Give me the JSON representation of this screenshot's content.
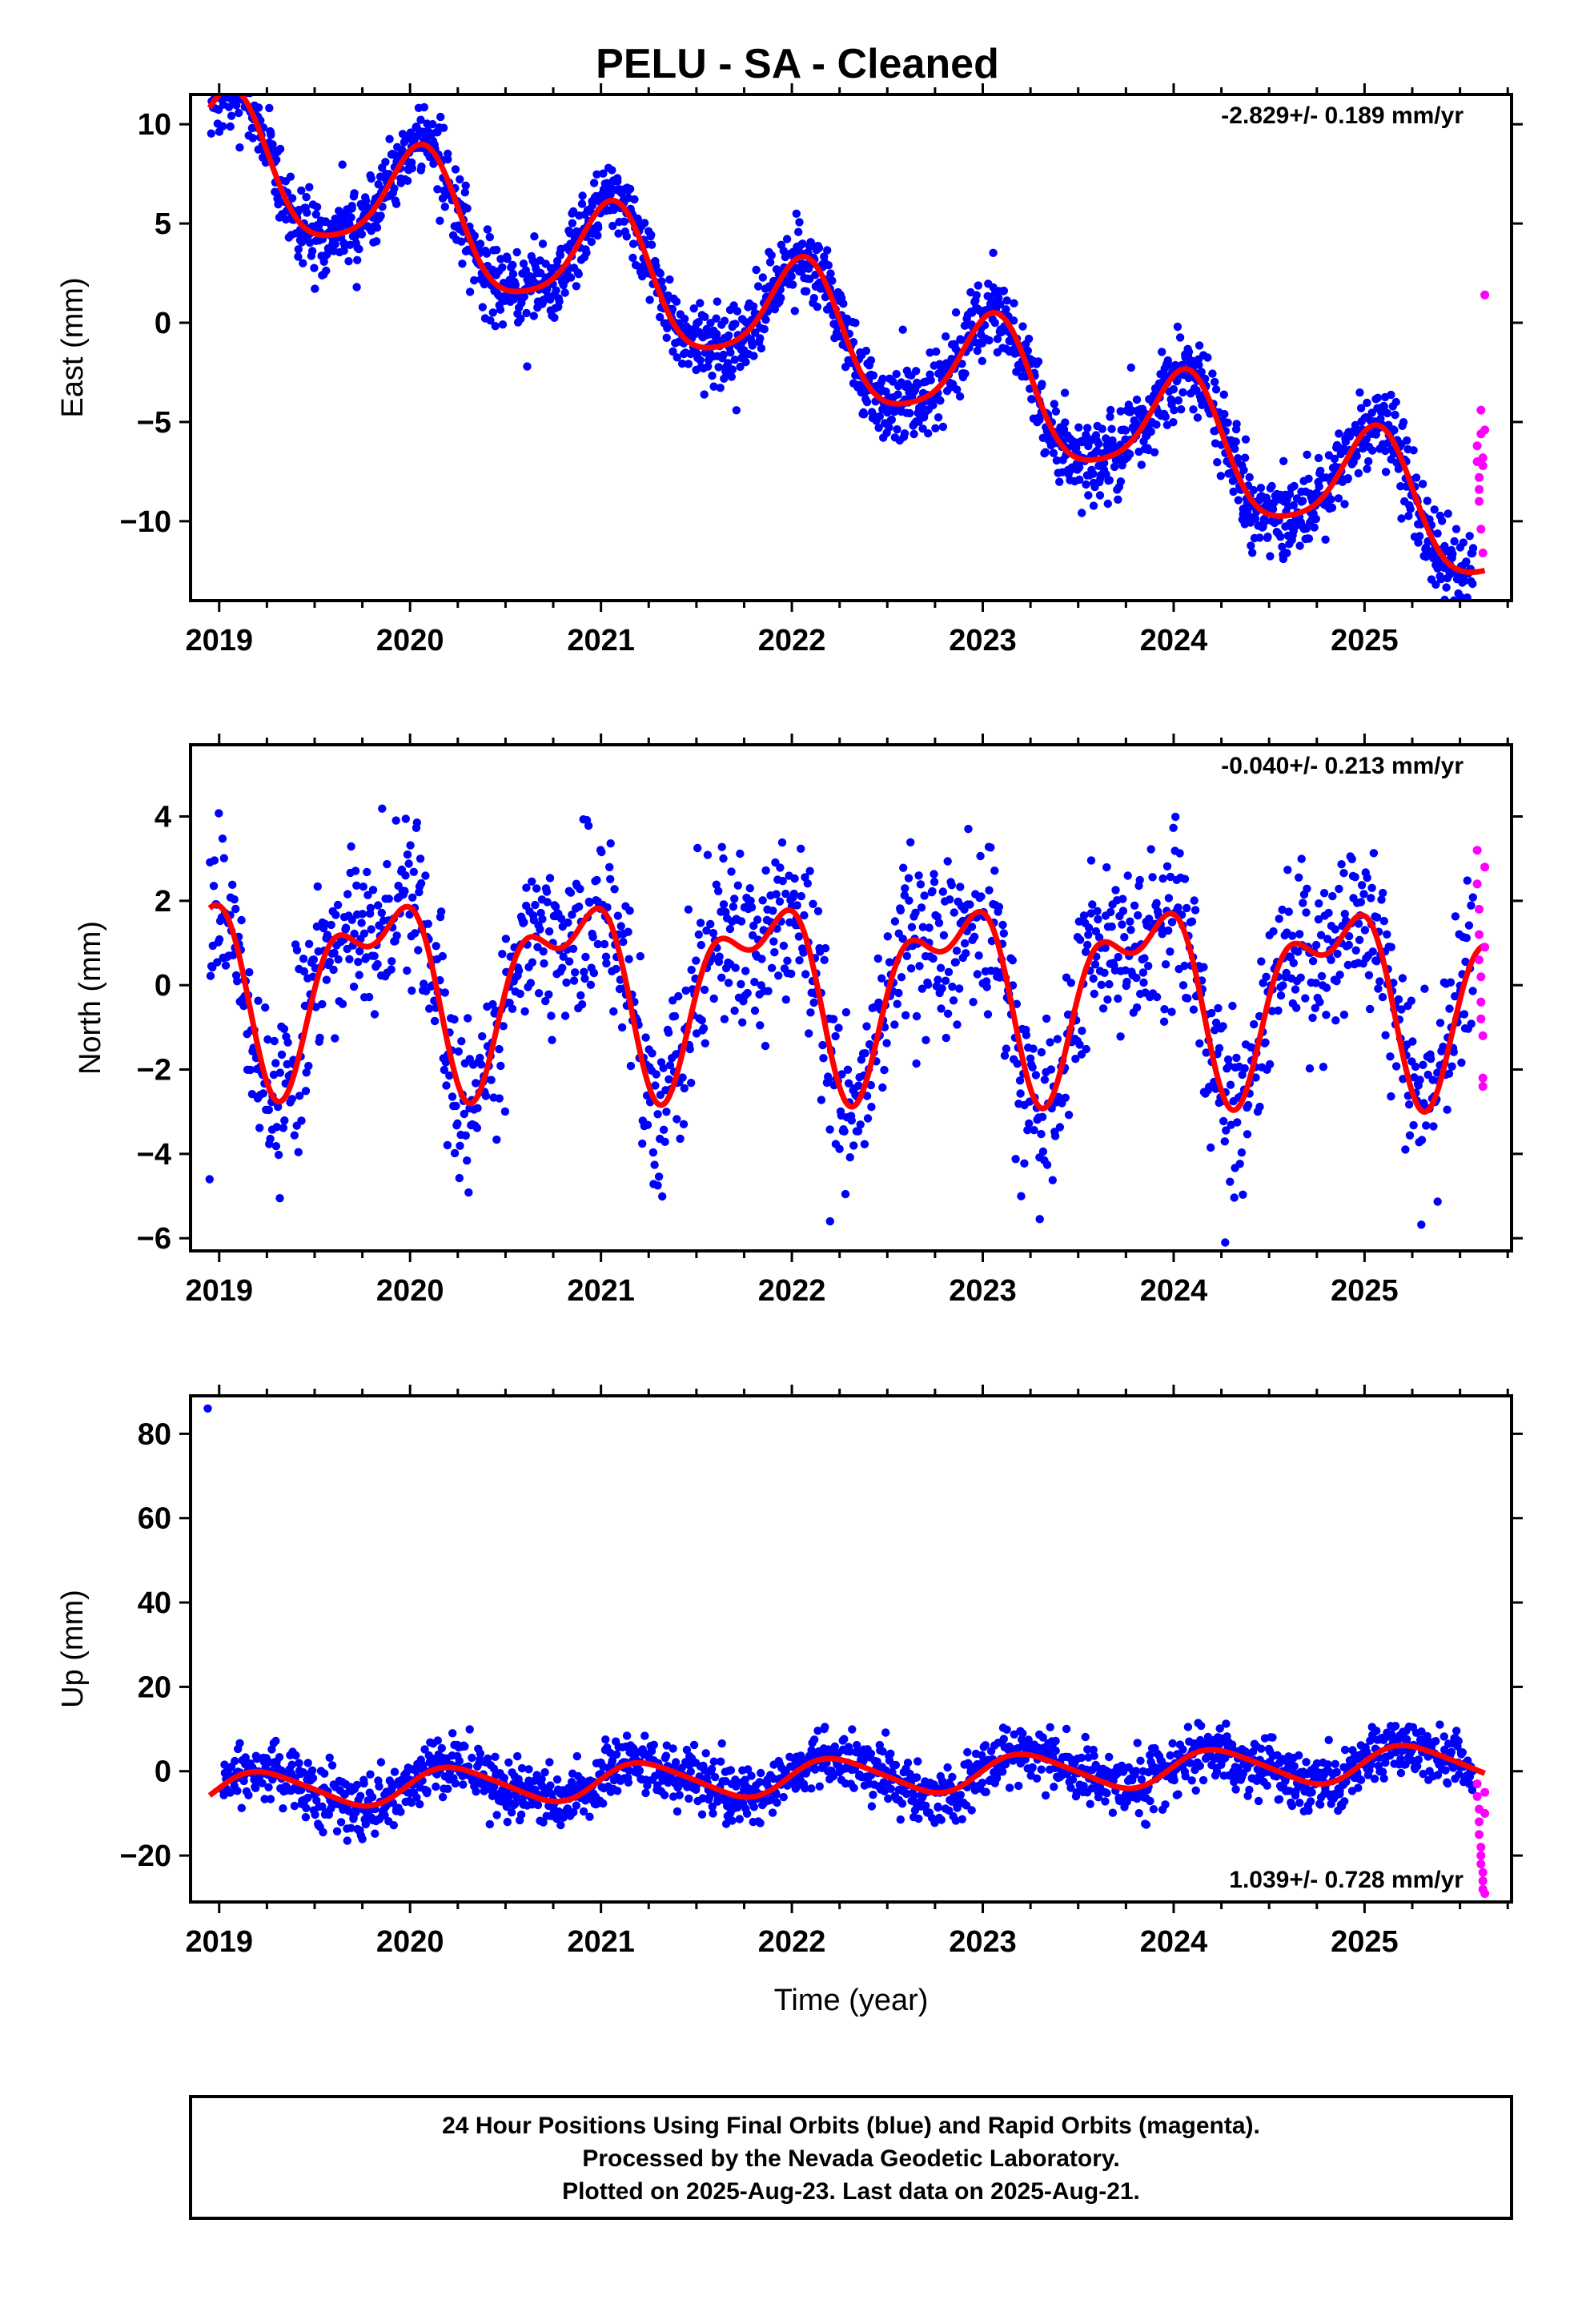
{
  "title": "PELU  - SA - Cleaned",
  "colors": {
    "final_orbits": "#0000ff",
    "rapid_orbits": "#ff00ff",
    "model_fit": "#ff0000",
    "frame": "#000000"
  },
  "xlabel": "Time (year)",
  "footer": {
    "line1": "24 Hour Positions Using Final Orbits (blue) and Rapid Orbits (magenta).",
    "line2": "Processed by the Nevada Geodetic Laboratory.",
    "line3": "Plotted on 2025-Aug-23. Last data on 2025-Aug-21."
  },
  "chart_data": [
    {
      "type": "scatter",
      "component": "east",
      "ylabel": "East (mm)",
      "rate_label": "-2.829+/- 0.189 mm/yr",
      "rate_position": "top-right",
      "xlim": [
        2018.85,
        2025.77
      ],
      "ylim": [
        -14,
        11.5
      ],
      "xticks": [
        "2019",
        "2020",
        "2021",
        "2022",
        "2023",
        "2024",
        "2025"
      ],
      "yticks": [
        "10",
        "5",
        "0",
        "−5",
        "−10"
      ],
      "ytick_values": [
        10,
        5,
        0,
        -5,
        -10
      ],
      "series": [
        {
          "role": "final_orbits",
          "model": {
            "offset": 0.0,
            "rate": -2.829,
            "annual_amp": 3.0,
            "annual_phase": 1.2,
            "semiannual_amp": 0.55,
            "semiannual_phase": 0.4
          },
          "scatter_sd": 1.0,
          "x_range": [
            2018.95,
            2025.57
          ],
          "n_points": 2100
        },
        {
          "role": "rapid_orbits",
          "x": [
            2025.59,
            2025.59,
            2025.6,
            2025.6,
            2025.6,
            2025.61,
            2025.61,
            2025.61,
            2025.62,
            2025.62,
            2025.62,
            2025.63,
            2025.63
          ],
          "y": [
            -6.2,
            -7.0,
            -7.8,
            -8.4,
            -9.0,
            -5.6,
            -4.4,
            -10.4,
            -11.6,
            -7.2,
            -6.8,
            1.4,
            -5.4
          ]
        },
        {
          "role": "model_fit",
          "x": [
            2018.95,
            2025.63
          ]
        }
      ]
    },
    {
      "type": "scatter",
      "component": "north",
      "ylabel": "North (mm)",
      "rate_label": "-0.040+/- 0.213 mm/yr",
      "rate_position": "top-right",
      "xlim": [
        2018.85,
        2025.77
      ],
      "ylim": [
        -6.3,
        5.7
      ],
      "xticks": [
        "2019",
        "2020",
        "2021",
        "2022",
        "2023",
        "2024",
        "2025"
      ],
      "yticks": [
        "4",
        "2",
        "0",
        "−2",
        "−4",
        "−6"
      ],
      "ytick_values": [
        4,
        2,
        0,
        -2,
        -4,
        -6
      ],
      "series": [
        {
          "role": "final_orbits",
          "model": {
            "offset": 0.0,
            "rate": -0.04,
            "annual_amp": 1.9,
            "annual_phase": 2.6,
            "semiannual_amp": 1.0,
            "semiannual_phase": 0.9
          },
          "scatter_sd": 1.0,
          "x_range": [
            2018.95,
            2025.57
          ],
          "n_points": 1500,
          "outliers": {
            "x": [
              2018.95,
              2024.27,
              2022.2
            ],
            "y": [
              -4.6,
              -6.1,
              -5.6
            ]
          }
        },
        {
          "role": "rapid_orbits",
          "x": [
            2025.59,
            2025.59,
            2025.6,
            2025.6,
            2025.6,
            2025.61,
            2025.61,
            2025.61,
            2025.62,
            2025.62,
            2025.62,
            2025.63,
            2025.63
          ],
          "y": [
            3.2,
            2.4,
            1.8,
            1.2,
            0.6,
            0.2,
            -0.4,
            -0.8,
            -1.2,
            -2.2,
            -2.4,
            2.8,
            0.9
          ]
        },
        {
          "role": "model_fit",
          "x": [
            2018.95,
            2025.63
          ]
        }
      ]
    },
    {
      "type": "scatter",
      "component": "up",
      "ylabel": "Up (mm)",
      "rate_label": "1.039+/- 0.728 mm/yr",
      "rate_position": "bottom-right",
      "xlim": [
        2018.85,
        2025.77
      ],
      "ylim": [
        -31,
        89
      ],
      "xticks": [
        "2019",
        "2020",
        "2021",
        "2022",
        "2023",
        "2024",
        "2025"
      ],
      "yticks": [
        "80",
        "60",
        "40",
        "20",
        "0",
        "−20"
      ],
      "ytick_values": [
        80,
        60,
        40,
        20,
        0,
        -20
      ],
      "series": [
        {
          "role": "final_orbits",
          "model": {
            "offset": -1.5,
            "rate": 1.039,
            "annual_amp": 4.2,
            "annual_phase": 0.1,
            "semiannual_amp": 0.6,
            "semiannual_phase": 0.3
          },
          "scatter_sd": 3.6,
          "x_range": [
            2019.02,
            2025.57
          ],
          "n_points": 1700,
          "outliers": {
            "x": [
              2018.94
            ],
            "y": [
              86
            ]
          }
        },
        {
          "role": "rapid_orbits",
          "x": [
            2025.59,
            2025.59,
            2025.6,
            2025.6,
            2025.6,
            2025.61,
            2025.61,
            2025.61,
            2025.62,
            2025.62,
            2025.62,
            2025.63,
            2025.63,
            2025.63
          ],
          "y": [
            -3,
            -6,
            -9,
            -12,
            -15,
            -18,
            -20,
            -22,
            -24,
            -26,
            -28,
            -29,
            -10,
            -5
          ]
        },
        {
          "role": "model_fit",
          "x": [
            2018.95,
            2025.63
          ]
        }
      ]
    }
  ]
}
